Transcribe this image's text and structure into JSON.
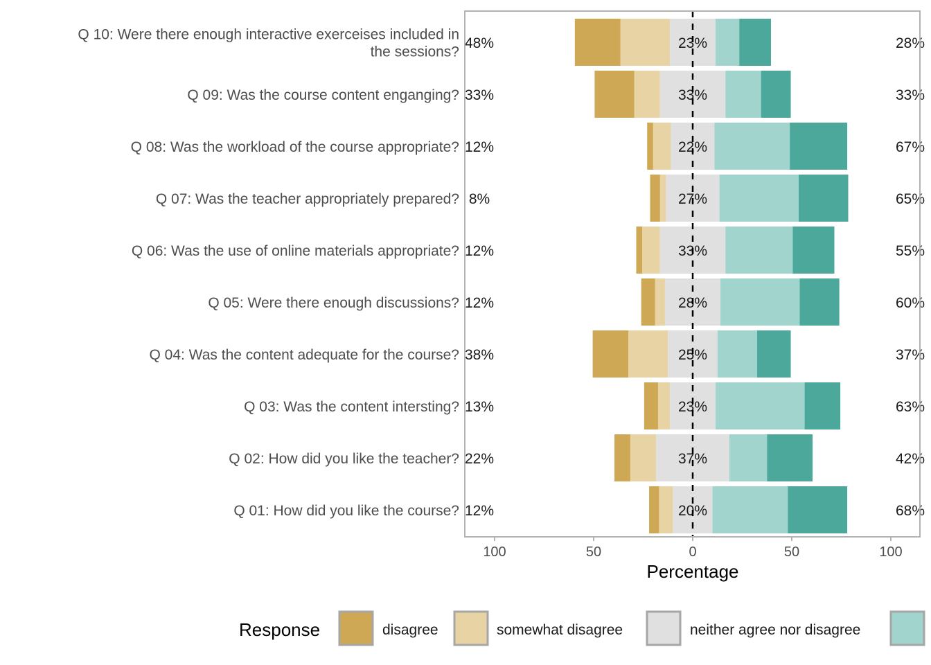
{
  "chart_data": {
    "type": "bar",
    "subtype": "diverging-stacked-likert",
    "xlabel": "Percentage",
    "xlim": [
      -100,
      100
    ],
    "x_ticks": [
      -100,
      -50,
      0,
      50,
      100
    ],
    "x_tick_labels": [
      "100",
      "50",
      "0",
      "50",
      "100"
    ],
    "legend": {
      "title": "Response",
      "position": "bottom",
      "entries": [
        {
          "label": "disagree",
          "color": "#CFA855"
        },
        {
          "label": "somewhat disagree",
          "color": "#E8D3A4"
        },
        {
          "label": "neither agree nor disagree",
          "color": "#E0E0E0"
        },
        {
          "label": "",
          "color": "#A1D4CD"
        }
      ]
    },
    "colors": {
      "disagree": "#CFA855",
      "somewhat_disagree": "#E8D3A4",
      "neutral": "#E0E0E0",
      "somewhat_agree": "#A1D4CD",
      "agree": "#4CA89B"
    },
    "questions": [
      {
        "label": "Q 10: Were there enough interactive exerceises included in the sessions?",
        "left_pct": "48%",
        "center_pct": "23%",
        "right_pct": "28%",
        "disagree": 23,
        "somewhat_disagree": 25,
        "neutral": 23,
        "somewhat_agree": 12,
        "agree": 16
      },
      {
        "label": "Q 09: Was the course content enganging?",
        "left_pct": "33%",
        "center_pct": "33%",
        "right_pct": "33%",
        "disagree": 20,
        "somewhat_disagree": 13,
        "neutral": 33,
        "somewhat_agree": 18,
        "agree": 15
      },
      {
        "label": "Q 08: Was the workload of the course appropriate?",
        "left_pct": "12%",
        "center_pct": "22%",
        "right_pct": "67%",
        "disagree": 3,
        "somewhat_disagree": 9,
        "neutral": 22,
        "somewhat_agree": 38,
        "agree": 29
      },
      {
        "label": "Q 07: Was the teacher appropriately prepared?",
        "left_pct": "8%",
        "center_pct": "27%",
        "right_pct": "65%",
        "disagree": 5,
        "somewhat_disagree": 3,
        "neutral": 27,
        "somewhat_agree": 40,
        "agree": 25
      },
      {
        "label": "Q 06: Was the use of online materials appropriate?",
        "left_pct": "12%",
        "center_pct": "33%",
        "right_pct": "55%",
        "disagree": 3,
        "somewhat_disagree": 9,
        "neutral": 33,
        "somewhat_agree": 34,
        "agree": 21
      },
      {
        "label": "Q 05: Were there enough discussions?",
        "left_pct": "12%",
        "center_pct": "28%",
        "right_pct": "60%",
        "disagree": 7,
        "somewhat_disagree": 5,
        "neutral": 28,
        "somewhat_agree": 40,
        "agree": 20
      },
      {
        "label": "Q 04: Was the content adequate for the course?",
        "left_pct": "38%",
        "center_pct": "25%",
        "right_pct": "37%",
        "disagree": 18,
        "somewhat_disagree": 20,
        "neutral": 25,
        "somewhat_agree": 20,
        "agree": 17
      },
      {
        "label": "Q 03: Was the content intersting?",
        "left_pct": "13%",
        "center_pct": "23%",
        "right_pct": "63%",
        "disagree": 7,
        "somewhat_disagree": 6,
        "neutral": 23,
        "somewhat_agree": 45,
        "agree": 18
      },
      {
        "label": "Q 02: How did you like the teacher?",
        "left_pct": "22%",
        "center_pct": "37%",
        "right_pct": "42%",
        "disagree": 8,
        "somewhat_disagree": 13,
        "neutral": 37,
        "somewhat_agree": 19,
        "agree": 23
      },
      {
        "label": "Q 01: How did you like the course?",
        "left_pct": "12%",
        "center_pct": "20%",
        "right_pct": "68%",
        "disagree": 5,
        "somewhat_disagree": 7,
        "neutral": 20,
        "somewhat_agree": 38,
        "agree": 30
      }
    ]
  }
}
